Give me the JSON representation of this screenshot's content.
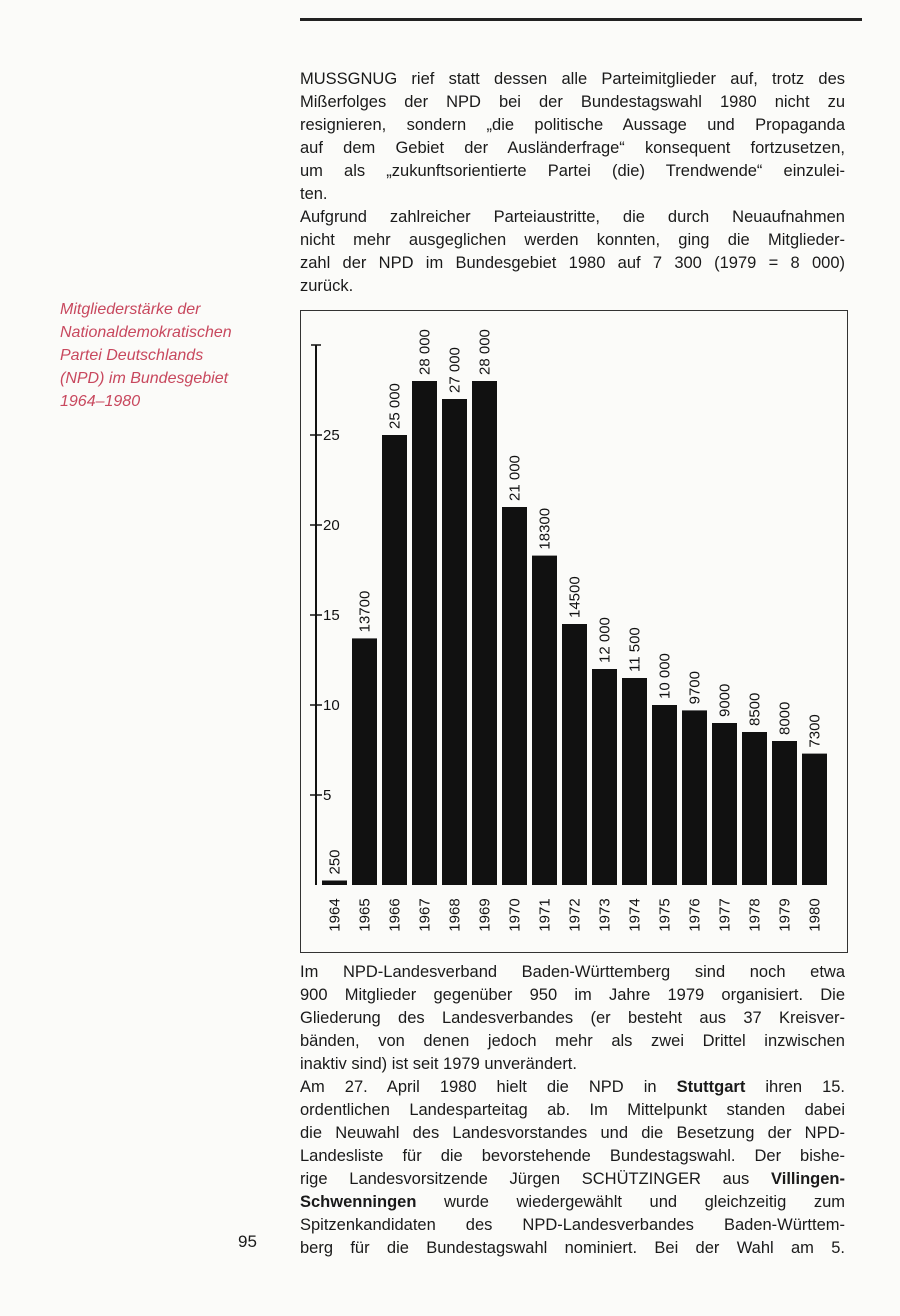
{
  "sidebar_caption": [
    "Mitgliederstärke der",
    "Nationaldemokratischen",
    "Partei Deutschlands",
    "(NPD) im Bundesgebiet",
    "1964–1980"
  ],
  "body_top": [
    "MUSSGNUG rief statt dessen alle Parteimitglieder auf, trotz des",
    "Mißerfolges der NPD bei der Bundestagswahl 1980 nicht zu",
    "resignieren, sondern „die politische Aussage und Propaganda",
    "auf dem Gebiet der Ausländerfrage“ konsequent fortzusetzen,",
    "um als „zukunftsorientierte Partei (die) Trendwende“ einzulei-",
    "ten.",
    "Aufgrund zahlreicher Parteiaustritte, die durch Neuaufnahmen",
    "nicht mehr ausgeglichen werden konnten, ging die Mitglieder-",
    "zahl der NPD im Bundesgebiet 1980 auf 7 300 (1979 = 8 000)",
    "zurück."
  ],
  "chart_data": {
    "type": "bar",
    "categories": [
      "1964",
      "1965",
      "1966",
      "1967",
      "1968",
      "1969",
      "1970",
      "1971",
      "1972",
      "1973",
      "1974",
      "1975",
      "1976",
      "1977",
      "1978",
      "1979",
      "1980"
    ],
    "values": [
      0.25,
      13.7,
      25,
      28,
      27,
      28,
      21,
      18.3,
      14.5,
      12,
      11.5,
      10,
      9.7,
      9,
      8.5,
      8,
      7.3
    ],
    "value_labels": [
      "250",
      "13700",
      "25 000",
      "28 000",
      "27 000",
      "28 000",
      "21 000",
      "18300",
      "14500",
      "12 000",
      "11 500",
      "10 000",
      "9700",
      "9000",
      "8500",
      "8000",
      "7300"
    ],
    "color": "#111111",
    "ylim": [
      0,
      30
    ],
    "yticks": [
      5,
      10,
      15,
      20,
      25
    ]
  },
  "body_bottom": [
    [
      "Im NPD-Landesverband Baden-Württemberg sind noch etwa"
    ],
    [
      "900 Mitglieder gegenüber 950 im Jahre 1979 organisiert. Die"
    ],
    [
      "Gliederung des Landesverbandes (er besteht aus 37 Kreisver-"
    ],
    [
      "bänden, von denen jedoch mehr als zwei Drittel inzwischen"
    ],
    [
      "inaktiv sind) ist seit 1979 unverändert."
    ],
    [
      "Am 27. April 1980 hielt die NPD in ",
      {
        "text": "Stuttgart",
        "bold": true
      },
      " ihren 15."
    ],
    [
      "ordentlichen Landesparteitag ab. Im Mittelpunkt standen dabei"
    ],
    [
      "die Neuwahl des Landesvorstandes und die Besetzung der NPD-"
    ],
    [
      "Landesliste für die bevorstehende Bundestagswahl. Der bishe-"
    ],
    [
      "rige Landesvorsitzende Jürgen SCHÜTZINGER aus ",
      {
        "text": "Villingen-",
        "bold": true
      }
    ],
    [
      {
        "text": "Schwenningen",
        "bold": true
      },
      " wurde wiedergewählt und gleichzeitig zum"
    ],
    [
      "Spitzenkandidaten des NPD-Landesverbandes Baden-Württem-"
    ],
    [
      "berg für die Bundestagswahl nominiert. Bei der Wahl am 5."
    ]
  ],
  "page_number": "95"
}
